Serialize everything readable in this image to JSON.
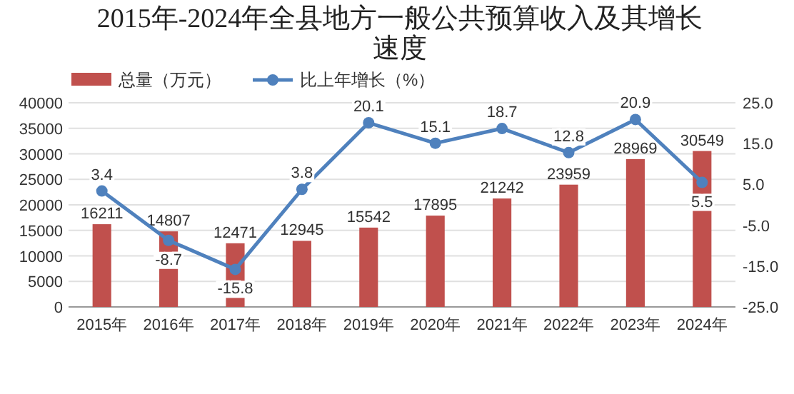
{
  "chart_data": {
    "type": "bar",
    "title": "2015年-2024年全县地方一般公共预算收入及其增长速度",
    "categories": [
      "2015年",
      "2016年",
      "2017年",
      "2018年",
      "2019年",
      "2020年",
      "2021年",
      "2022年",
      "2023年",
      "2024年"
    ],
    "series": [
      {
        "name": "总量（万元）",
        "color": "#c0504d",
        "values": [
          16211,
          14807,
          12471,
          12945,
          15542,
          17895,
          21242,
          23959,
          28969,
          30549
        ]
      },
      {
        "name": "比上年增长（%）",
        "type": "line",
        "axis": "y2",
        "color": "#4f81bd",
        "marker": "circle",
        "values": [
          3.4,
          -8.7,
          -15.8,
          3.8,
          20.1,
          15.1,
          18.7,
          12.8,
          20.9,
          5.5
        ]
      }
    ],
    "ylim": [
      0,
      40000
    ],
    "yticks": [
      0,
      5000,
      10000,
      15000,
      20000,
      25000,
      30000,
      35000,
      40000
    ],
    "y2lim": [
      -25,
      25
    ],
    "y2ticks": [
      {
        "value": -25,
        "label": "-25.0"
      },
      {
        "value": -15,
        "label": "-15.0"
      },
      {
        "value": -5,
        "label": "-5.0"
      },
      {
        "value": 5,
        "label": "5.0"
      },
      {
        "value": 15,
        "label": "15.0"
      },
      {
        "value": 25,
        "label": "25.0"
      }
    ],
    "grid": "y",
    "legend": "top left",
    "data_labels": true
  }
}
